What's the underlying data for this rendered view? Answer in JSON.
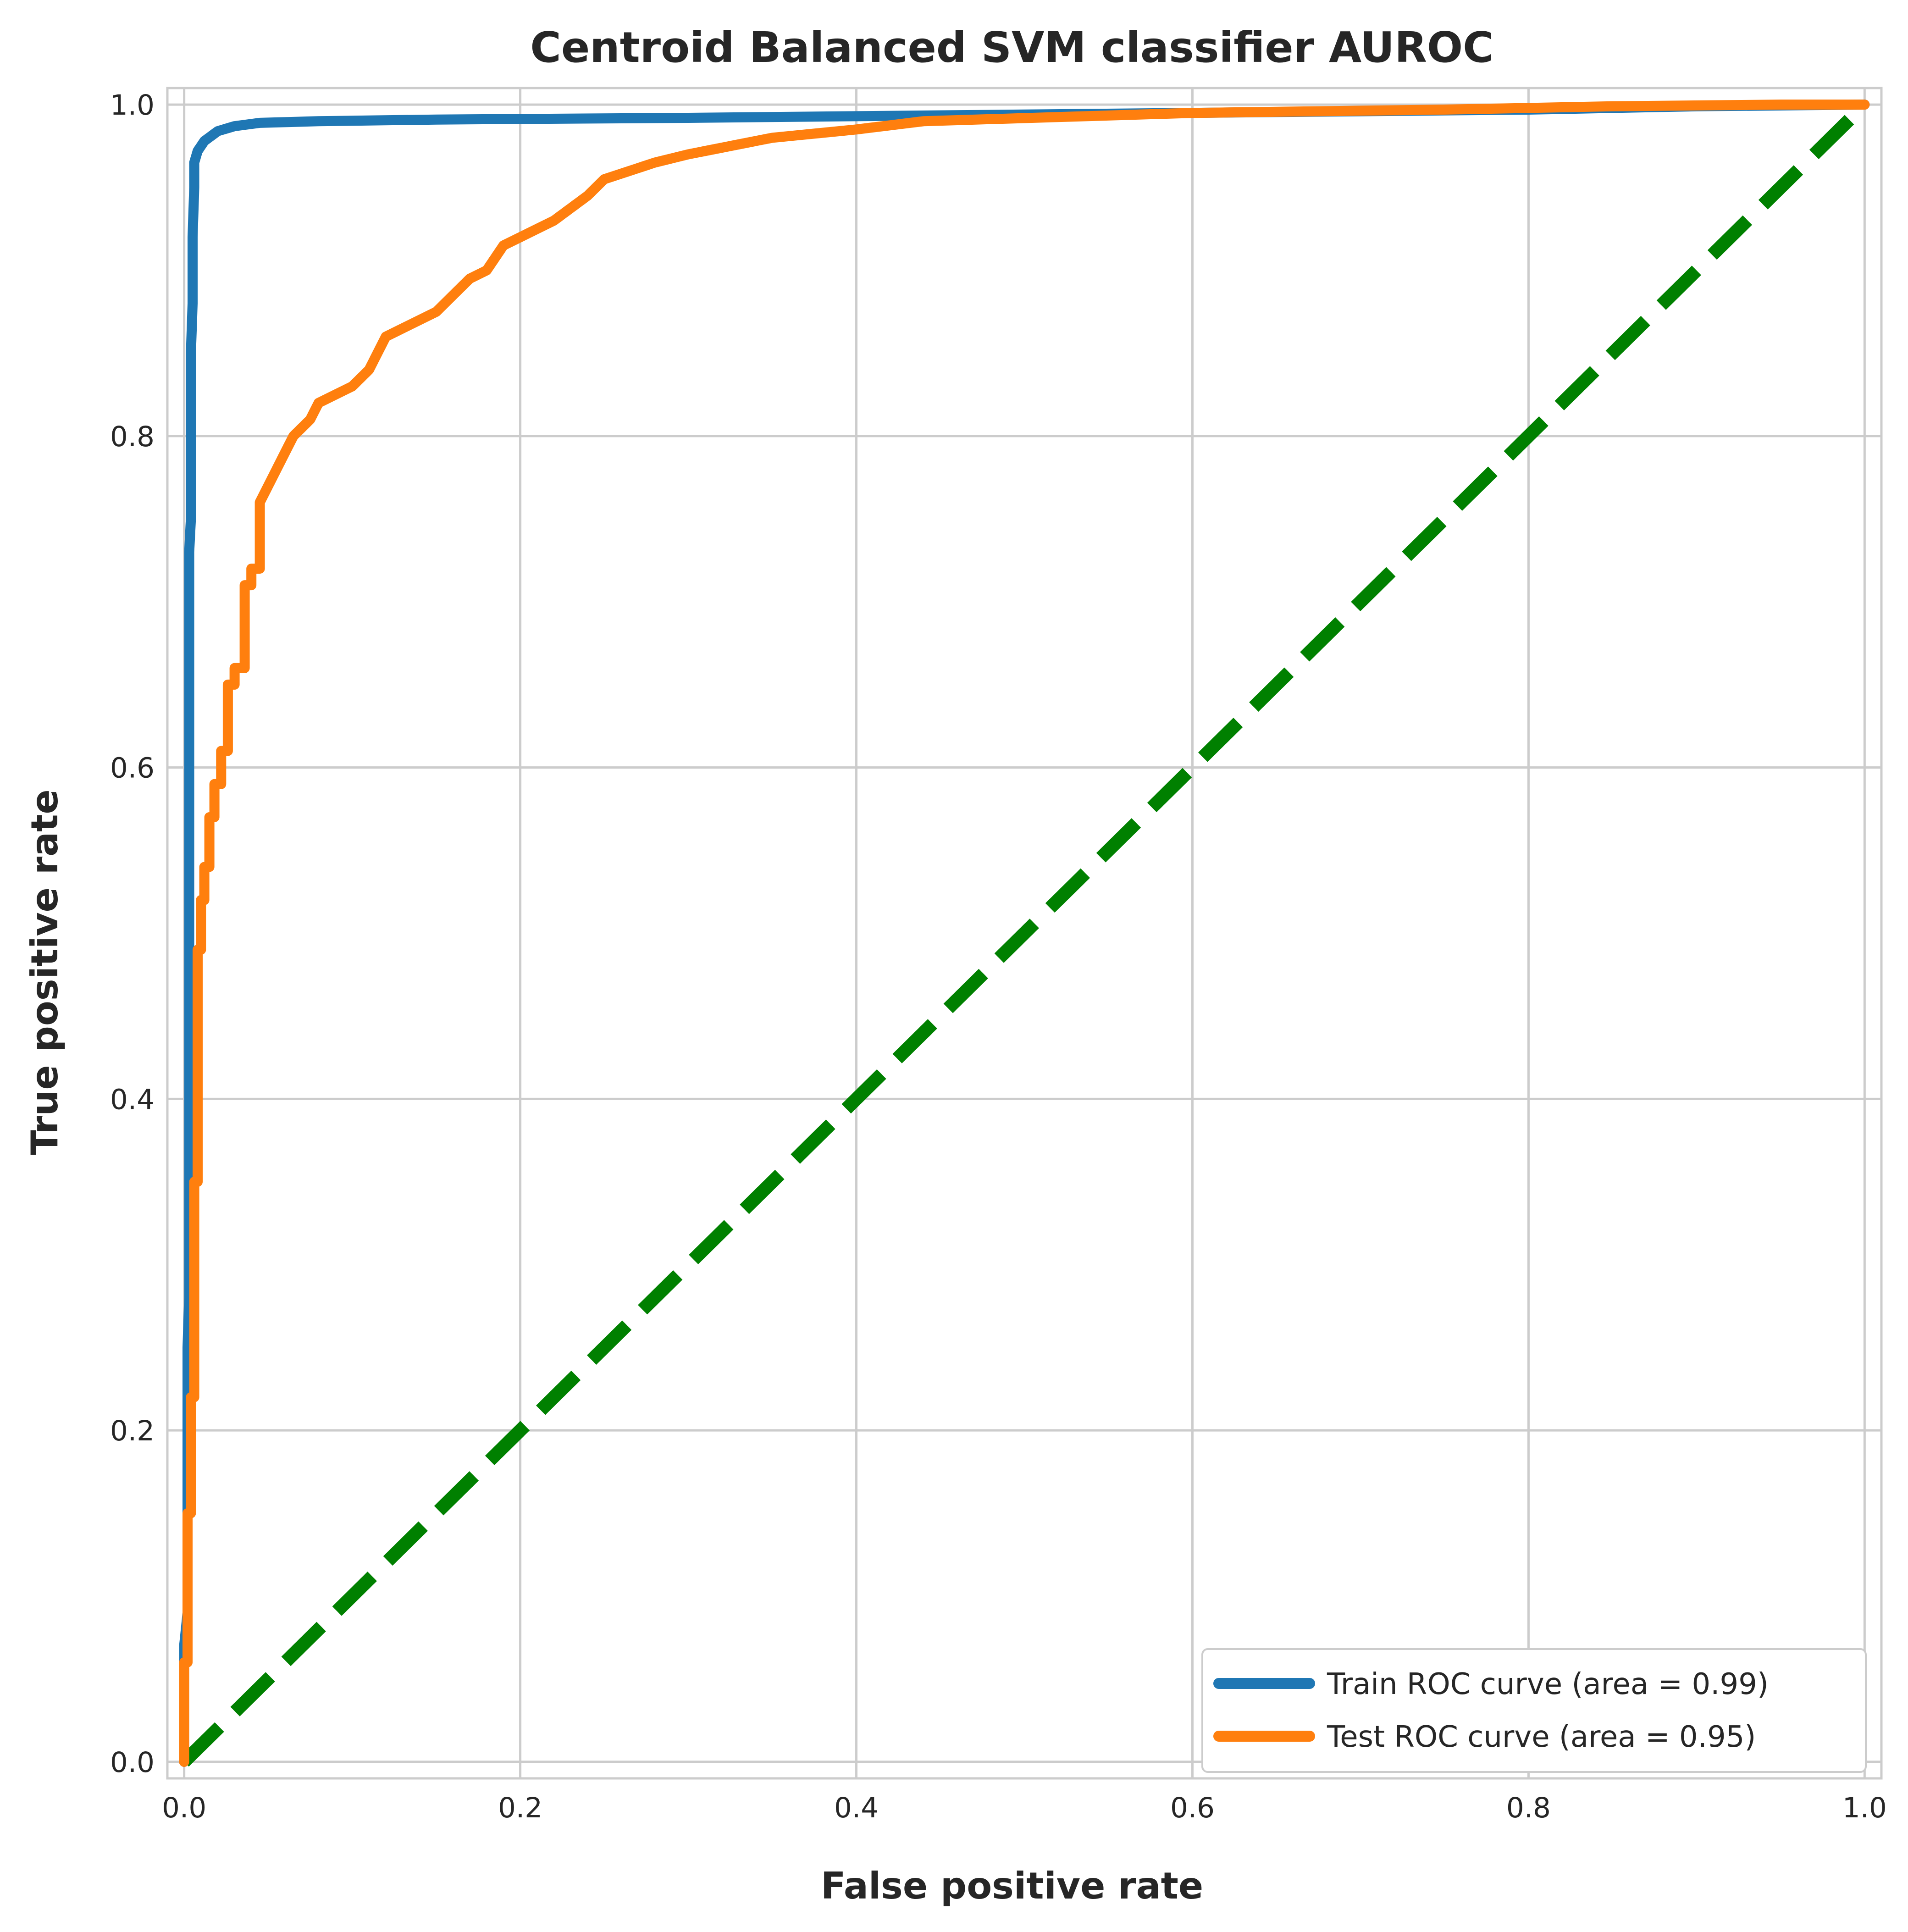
{
  "chart_data": {
    "type": "line",
    "title": "Centroid Balanced SVM classifier AUROC",
    "xlabel": "False positive rate",
    "ylabel": "True positive rate",
    "xlim": [
      -0.01,
      1.01
    ],
    "ylim": [
      -0.01,
      1.01
    ],
    "xticks": [
      0.0,
      0.2,
      0.4,
      0.6,
      0.8,
      1.0
    ],
    "xtick_labels": [
      "0.0",
      "0.2",
      "0.4",
      "0.6",
      "0.8",
      "1.0"
    ],
    "yticks": [
      0.0,
      0.2,
      0.4,
      0.6,
      0.8,
      1.0
    ],
    "ytick_labels": [
      "0.0",
      "0.2",
      "0.4",
      "0.6",
      "0.8",
      "1.0"
    ],
    "grid": true,
    "legend_position": "lower-right",
    "series": [
      {
        "name": "Train ROC curve (area = 0.99)",
        "color": "#1f77b4",
        "style": "solid",
        "x": [
          0.0,
          0.0,
          0.002,
          0.002,
          0.003,
          0.003,
          0.004,
          0.004,
          0.005,
          0.005,
          0.006,
          0.006,
          0.008,
          0.012,
          0.02,
          0.03,
          0.045,
          0.08,
          0.15,
          0.3,
          0.5,
          0.7,
          0.8,
          0.9,
          1.0
        ],
        "y": [
          0.0,
          0.07,
          0.09,
          0.25,
          0.28,
          0.73,
          0.75,
          0.85,
          0.88,
          0.92,
          0.95,
          0.965,
          0.972,
          0.978,
          0.984,
          0.987,
          0.989,
          0.99,
          0.991,
          0.992,
          0.994,
          0.996,
          0.997,
          0.999,
          1.0
        ]
      },
      {
        "name": "Test ROC curve (area = 0.95)",
        "color": "#ff7f0e",
        "style": "solid",
        "x": [
          0.0,
          0.0,
          0.002,
          0.002,
          0.004,
          0.004,
          0.006,
          0.006,
          0.008,
          0.008,
          0.01,
          0.01,
          0.012,
          0.012,
          0.015,
          0.015,
          0.018,
          0.018,
          0.022,
          0.022,
          0.026,
          0.026,
          0.03,
          0.03,
          0.036,
          0.036,
          0.04,
          0.04,
          0.045,
          0.045,
          0.05,
          0.055,
          0.06,
          0.065,
          0.07,
          0.075,
          0.08,
          0.09,
          0.1,
          0.11,
          0.115,
          0.12,
          0.13,
          0.15,
          0.16,
          0.17,
          0.18,
          0.19,
          0.2,
          0.22,
          0.24,
          0.25,
          0.28,
          0.3,
          0.35,
          0.4,
          0.44,
          0.6,
          0.75,
          0.85,
          0.95,
          1.0
        ],
        "y": [
          0.0,
          0.06,
          0.06,
          0.15,
          0.15,
          0.22,
          0.22,
          0.35,
          0.35,
          0.49,
          0.49,
          0.52,
          0.52,
          0.54,
          0.54,
          0.57,
          0.57,
          0.59,
          0.59,
          0.61,
          0.61,
          0.65,
          0.65,
          0.66,
          0.66,
          0.71,
          0.71,
          0.72,
          0.72,
          0.76,
          0.77,
          0.78,
          0.79,
          0.8,
          0.805,
          0.81,
          0.82,
          0.825,
          0.83,
          0.84,
          0.85,
          0.86,
          0.865,
          0.875,
          0.885,
          0.895,
          0.9,
          0.915,
          0.92,
          0.93,
          0.945,
          0.955,
          0.965,
          0.97,
          0.98,
          0.985,
          0.99,
          0.995,
          0.997,
          0.999,
          1.0,
          1.0
        ]
      },
      {
        "name": "",
        "color": "#008000",
        "style": "dashed",
        "x": [
          0.0,
          1.0
        ],
        "y": [
          0.0,
          1.0
        ]
      }
    ]
  }
}
